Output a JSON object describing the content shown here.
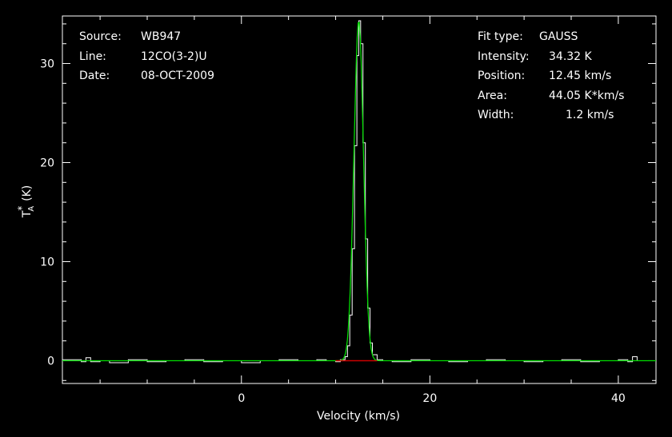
{
  "chart_data": {
    "type": "line",
    "xlabel": "Velocity (km/s)",
    "ylabel_main": "T",
    "ylabel_sup": "*",
    "ylabel_sub": "A",
    "ylabel_unit": "(K)",
    "xlim": [
      -19,
      44
    ],
    "ylim": [
      -2.3,
      34.8
    ],
    "x_ticks": [
      0,
      20,
      40
    ],
    "y_ticks": [
      0,
      10,
      20,
      30
    ],
    "grid": false,
    "series": [
      {
        "kind": "observed spectrum",
        "color": "#ffffff",
        "x": [
          -19,
          -17,
          -16.5,
          -16,
          -15,
          -14,
          -12,
          -10,
          -8,
          -6,
          -4,
          -2,
          0,
          2,
          4,
          6,
          8,
          9,
          10,
          10.5,
          11,
          11.25,
          11.5,
          11.75,
          12.0,
          12.25,
          12.45,
          12.65,
          12.9,
          13.15,
          13.4,
          13.65,
          13.9,
          14.4,
          15,
          16,
          18,
          20,
          22,
          24,
          26,
          28,
          30,
          32,
          34,
          36,
          38,
          40,
          41,
          41.5,
          42,
          44
        ],
        "y": [
          0.1,
          -0.1,
          0.3,
          -0.1,
          0.0,
          -0.2,
          0.1,
          -0.1,
          0.0,
          0.1,
          -0.1,
          0.0,
          -0.2,
          0.0,
          0.1,
          0.0,
          0.1,
          0.0,
          -0.1,
          0.1,
          0.4,
          1.5,
          4.6,
          11.3,
          21.7,
          30.8,
          34.32,
          32.0,
          22.0,
          12.3,
          5.3,
          1.8,
          0.6,
          0.1,
          0.0,
          -0.1,
          0.1,
          0.0,
          -0.1,
          0.0,
          0.1,
          0.0,
          -0.1,
          0.0,
          0.1,
          -0.1,
          0.0,
          0.1,
          -0.1,
          0.4,
          0.0,
          -0.1
        ]
      },
      {
        "kind": "gaussian fit",
        "color": "#00dd00",
        "center": 12.45,
        "amplitude": 34.32,
        "fwhm": 1.2
      },
      {
        "kind": "baseline window",
        "color": "#cc0000",
        "x": [
          10.0,
          14.4
        ],
        "y": [
          0.0,
          0.0
        ]
      }
    ]
  },
  "info_left": [
    {
      "label": "Source:",
      "value": "WB947"
    },
    {
      "label": "Line:",
      "value": "12CO(3-2)U"
    },
    {
      "label": "Date:",
      "value": "08-OCT-2009"
    }
  ],
  "info_right": [
    {
      "label": "Fit type:",
      "value": "GAUSS"
    },
    {
      "label": "Intensity:",
      "value": "34.32 K"
    },
    {
      "label": "Position:",
      "value": "12.45 km/s"
    },
    {
      "label": "Area:",
      "value": "44.05 K*km/s"
    },
    {
      "label": "Width:",
      "value": "1.2 km/s"
    }
  ],
  "colors": {
    "background": "#000000",
    "axes": "#ffffff"
  }
}
